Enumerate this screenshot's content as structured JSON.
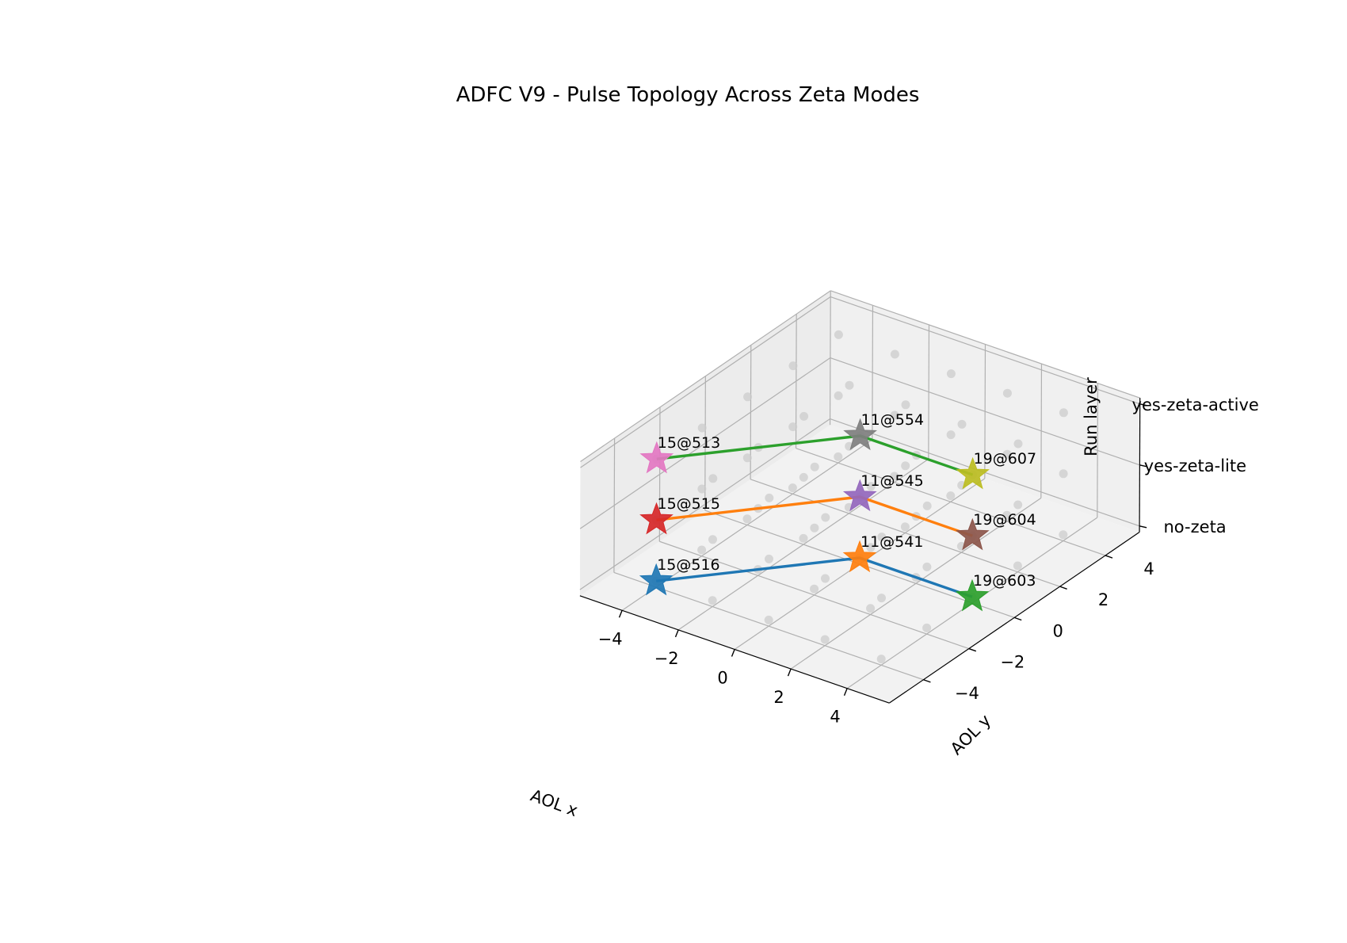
{
  "chart_data": {
    "type": "scatter",
    "projection": "3d",
    "title": "ADFC V9 - Pulse Topology Across Zeta Modes",
    "xlabel": "AOL x",
    "ylabel": "AOL y",
    "zlabel": "Run layer",
    "xlim": [
      -5.5,
      5.5
    ],
    "ylim": [
      -5.5,
      5.5
    ],
    "zlim": [
      -0.1,
      2.1
    ],
    "x_ticks": [
      -4,
      -2,
      0,
      2,
      4
    ],
    "y_ticks": [
      -4,
      -2,
      0,
      2,
      4
    ],
    "z_ticks": [
      0,
      1,
      2
    ],
    "x_tick_labels": [
      "−4",
      "−2",
      "0",
      "2",
      "4"
    ],
    "y_tick_labels": [
      "−4",
      "−2",
      "0",
      "2",
      "4"
    ],
    "z_tick_labels": [
      "no-zeta",
      "yes-zeta-lite",
      "yes-zeta-active"
    ],
    "grid": true,
    "series": [
      {
        "z": 0,
        "line_color": "#1f77b4",
        "points": [
          {
            "label": "15@516",
            "x": -4,
            "y": -4,
            "color": "#1f77b4"
          },
          {
            "label": "11@541",
            "x": 0,
            "y": 0,
            "color": "#ff7f0e"
          },
          {
            "label": "19@603",
            "x": 4,
            "y": 0,
            "color": "#2ca02c"
          }
        ]
      },
      {
        "z": 1,
        "line_color": "#ff7f0e",
        "points": [
          {
            "label": "15@515",
            "x": -4,
            "y": -4,
            "color": "#d62728"
          },
          {
            "label": "11@545",
            "x": 0,
            "y": 0,
            "color": "#9467bd"
          },
          {
            "label": "19@604",
            "x": 4,
            "y": 0,
            "color": "#8c564b"
          }
        ]
      },
      {
        "z": 2,
        "line_color": "#2ca02c",
        "points": [
          {
            "label": "15@513",
            "x": -4,
            "y": -4,
            "color": "#e377c2"
          },
          {
            "label": "11@554",
            "x": 0,
            "y": 0,
            "color": "#7f7f7f"
          },
          {
            "label": "19@607",
            "x": 4,
            "y": 0,
            "color": "#bcbd22"
          }
        ]
      }
    ],
    "background_points": {
      "color": "#cccccc",
      "z_levels": [
        0,
        1,
        2
      ],
      "x_values": [
        -4,
        -2,
        0,
        2,
        4
      ],
      "y_values": [
        -4,
        -2,
        0,
        2,
        4
      ]
    }
  }
}
